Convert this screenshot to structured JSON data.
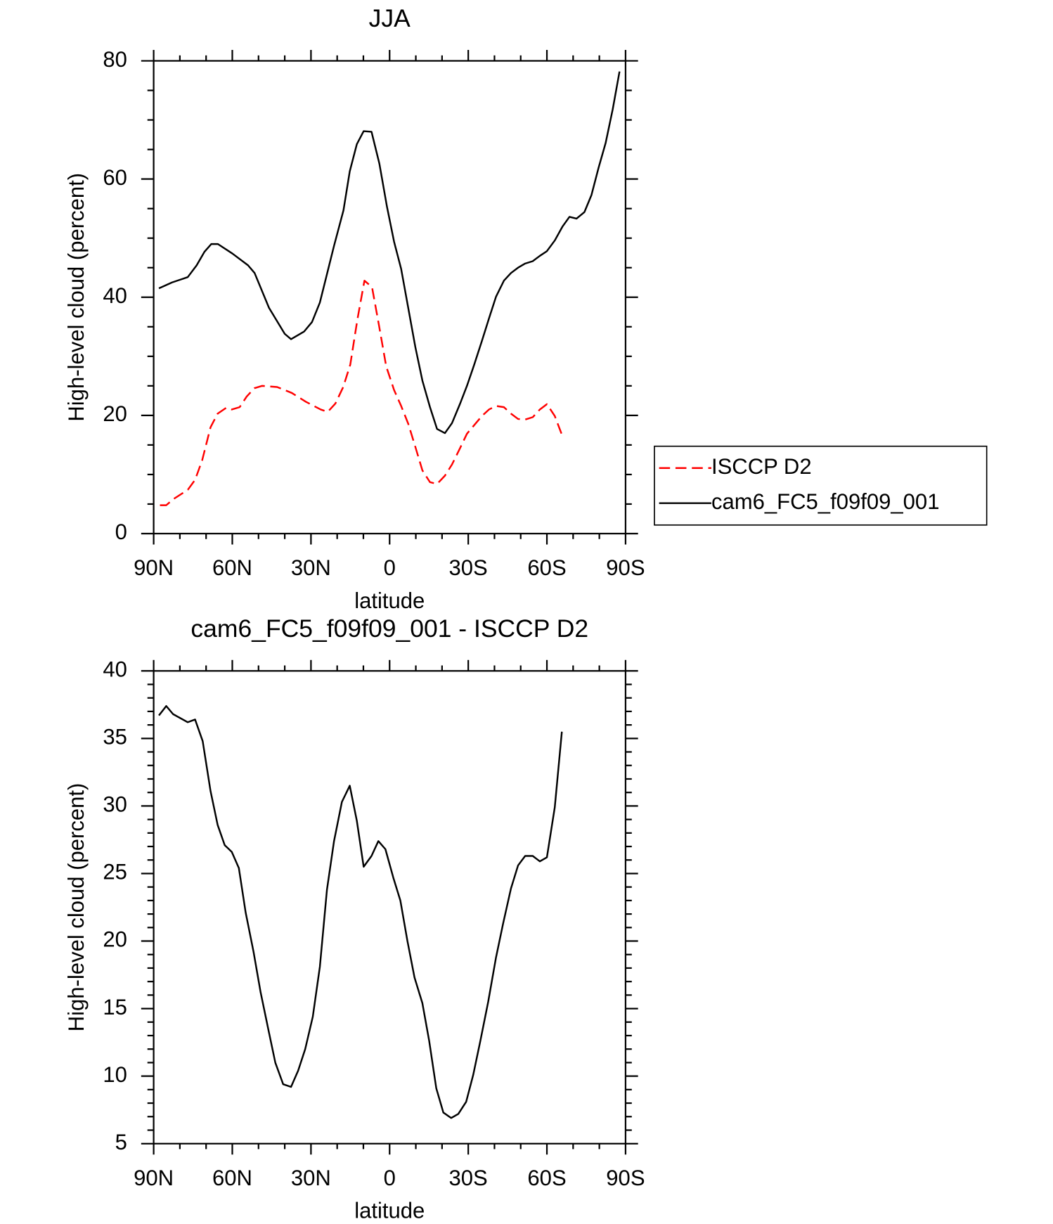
{
  "chart_data": [
    {
      "type": "line",
      "title": "JJA",
      "xlabel": "latitude",
      "ylabel": "High-level cloud (percent)",
      "xlim": [
        90,
        -90
      ],
      "xticks": [
        {
          "value": 90,
          "label": "90N"
        },
        {
          "value": 60,
          "label": "60N"
        },
        {
          "value": 30,
          "label": "30N"
        },
        0,
        {
          "value": -30,
          "label": "30S"
        },
        {
          "value": -60,
          "label": "60S"
        },
        {
          "value": -90,
          "label": "90S"
        }
      ],
      "xminorticks": [
        80,
        70,
        50,
        40,
        20,
        10,
        -10,
        -20,
        -40,
        -50,
        -70,
        -80
      ],
      "ylim": [
        0,
        80
      ],
      "yticks": [
        0,
        20,
        40,
        60,
        80
      ],
      "yminorticks": [
        5,
        10,
        15,
        25,
        30,
        35,
        45,
        50,
        55,
        65,
        70,
        75
      ],
      "legend": "right",
      "series": [
        {
          "name": "ISCCP D2",
          "color": "#ff0000",
          "dash": true,
          "x": [
            87.6,
            85.2,
            82.6,
            77,
            74.2,
            71.5,
            68.3,
            65.6,
            62.3,
            60.2,
            57.2,
            54.5,
            51.6,
            48.6,
            42.9,
            37.3,
            31.9,
            26.3,
            23.6,
            20.7,
            17.7,
            15,
            12.3,
            9.6,
            6.7,
            4,
            1.3,
            -1.7,
            -4.4,
            -7.1,
            -9.8,
            -12.5,
            -15.4,
            -18.1,
            -21.1,
            -23.8,
            -26.8,
            -29.5,
            -35.2,
            -37.9,
            -40.6,
            -43.6,
            -46.3,
            -49,
            -51.7,
            -54.6,
            -57.3,
            -60,
            -63,
            -66
          ],
          "values": [
            4.8,
            4.8,
            5.8,
            7.4,
            9.1,
            12.4,
            18,
            20.3,
            21.3,
            21,
            21.4,
            23.2,
            24.6,
            25,
            24.8,
            23.8,
            22.3,
            21,
            20.6,
            22,
            24.8,
            28.6,
            36.2,
            42.8,
            41.7,
            35.1,
            28.3,
            24.3,
            21.6,
            18.6,
            14.7,
            10.7,
            8.7,
            8.4,
            9.8,
            11.7,
            14.4,
            16.9,
            19.9,
            21,
            21.6,
            21.4,
            20.3,
            19.4,
            19.3,
            19.7,
            21,
            21.9,
            19.9,
            16.4
          ]
        },
        {
          "name": "cam6_FC5_f09f09_001",
          "color": "#000000",
          "dash": false,
          "x": [
            88,
            83,
            77,
            73.6,
            70.6,
            68,
            65.5,
            60,
            54,
            51.5,
            46,
            40,
            37.6,
            32.6,
            29.6,
            26.6,
            21.2,
            17.6,
            15.2,
            12.5,
            9.9,
            6.9,
            3.9,
            1,
            -1.7,
            -4.4,
            -7.1,
            -9.8,
            -12.5,
            -15.4,
            -18.1,
            -21.1,
            -23.8,
            -26.8,
            -29.5,
            -32.2,
            -35.2,
            -37.9,
            -40.6,
            -43.6,
            -46.3,
            -49,
            -51.7,
            -54.6,
            -57.3,
            -60,
            -63,
            -66,
            -68.6,
            -71.3,
            -74.3,
            -77,
            -79.7,
            -82.4,
            -85.1,
            -87.7
          ],
          "values": [
            41.5,
            42.5,
            43.4,
            45.4,
            47.7,
            49,
            49,
            47.4,
            45.4,
            44.1,
            38.2,
            33.8,
            32.9,
            34.2,
            35.8,
            39.1,
            48.7,
            54.7,
            61.3,
            65.9,
            68.1,
            68,
            62.6,
            55.3,
            49.4,
            44.8,
            38.2,
            31.6,
            25.9,
            21.4,
            17.7,
            17,
            18.7,
            21.9,
            25,
            28.5,
            32.6,
            36.4,
            40.1,
            42.8,
            44.1,
            45,
            45.7,
            46.1,
            47,
            47.8,
            49.6,
            52,
            53.6,
            53.3,
            54.4,
            57.3,
            61.9,
            66.1,
            71.8,
            78.2
          ]
        }
      ]
    },
    {
      "type": "line",
      "title": "cam6_FC5_f09f09_001 - ISCCP D2",
      "xlabel": "latitude",
      "ylabel": "High-level cloud (percent)",
      "xlim": [
        90,
        -90
      ],
      "xticks": [
        {
          "value": 90,
          "label": "90N"
        },
        {
          "value": 60,
          "label": "60N"
        },
        {
          "value": 30,
          "label": "30N"
        },
        0,
        {
          "value": -30,
          "label": "30S"
        },
        {
          "value": -60,
          "label": "60S"
        },
        {
          "value": -90,
          "label": "90S"
        }
      ],
      "xminorticks": [
        80,
        70,
        50,
        40,
        20,
        10,
        -10,
        -20,
        -40,
        -50,
        -70,
        -80
      ],
      "ylim": [
        5,
        40
      ],
      "yticks": [
        5,
        10,
        15,
        20,
        25,
        30,
        35,
        40
      ],
      "yminorticks": [
        6,
        7,
        8,
        9,
        11,
        12,
        13,
        14,
        16,
        17,
        18,
        19,
        21,
        22,
        23,
        24,
        26,
        27,
        28,
        29,
        31,
        32,
        33,
        34,
        36,
        37,
        38,
        39
      ],
      "series": [
        {
          "color": "#000000",
          "dash": false,
          "x": [
            88,
            85.2,
            82.6,
            77,
            74.2,
            71.3,
            68.3,
            65.6,
            62.9,
            60.2,
            57.5,
            54.9,
            51.9,
            49.2,
            46.2,
            43.6,
            40.6,
            37.6,
            34.9,
            32.2,
            29.3,
            26.6,
            23.9,
            21.2,
            18.2,
            15.2,
            12.5,
            9.9,
            6.9,
            4.3,
            1.6,
            -1.4,
            -4.1,
            -6.8,
            -9.5,
            -12.5,
            -15.1,
            -17.8,
            -20.5,
            -23.5,
            -26.2,
            -29.2,
            -31.9,
            -34.6,
            -37.6,
            -40.6,
            -43.3,
            -46.3,
            -49,
            -51.7,
            -54.6,
            -57.3,
            -60,
            -63,
            -65.7
          ],
          "values": [
            36.7,
            37.4,
            36.8,
            36.2,
            36.4,
            34.8,
            31.1,
            28.6,
            27.1,
            26.6,
            25.4,
            22.1,
            19.2,
            16.2,
            13.4,
            11,
            9.4,
            9.2,
            10.4,
            12,
            14.4,
            18.1,
            23.8,
            27.4,
            30.3,
            31.5,
            28.9,
            25.5,
            26.3,
            27.4,
            26.8,
            24.7,
            23,
            20,
            17.3,
            15.4,
            12.6,
            9.1,
            7.3,
            6.9,
            7.2,
            8.1,
            10.1,
            12.6,
            15.5,
            18.8,
            21.3,
            23.9,
            25.6,
            26.3,
            26.3,
            25.9,
            26.2,
            29.9,
            35.5
          ]
        }
      ]
    }
  ]
}
